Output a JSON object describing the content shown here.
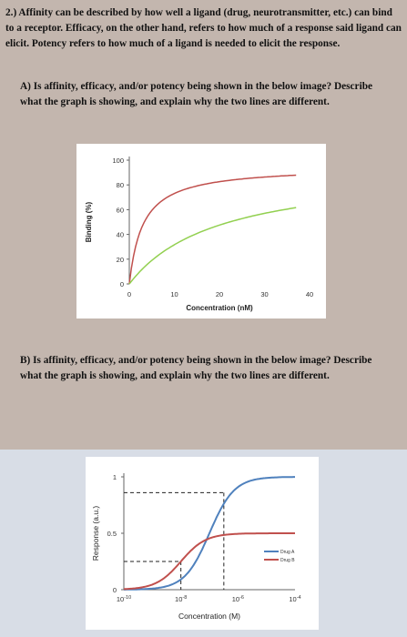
{
  "question": {
    "intro": "2.) Affinity can be described by how well a ligand (drug, neurotransmitter, etc.) can bind to a receptor. Efficacy, on the other hand, refers to how much of a response said ligand can elicit. Potency refers to how much of a ligand is needed to elicit the response.",
    "part_a": "A) Is affinity, efficacy, and/or potency being shown in the below image? Describe what the graph is showing, and explain why the two lines are different.",
    "part_b": "B) Is affinity, efficacy, and/or potency being shown in the below image? Describe what the graph is showing, and explain why the two lines are different."
  },
  "chart_data": [
    {
      "type": "line",
      "title": "",
      "xlabel": "Concentration (nM)",
      "ylabel": "Binding (%)",
      "xlim": [
        0,
        40
      ],
      "ylim": [
        0,
        100
      ],
      "x_ticks": [
        "0",
        "10",
        "20",
        "30",
        "40"
      ],
      "y_ticks": [
        "0",
        "20",
        "40",
        "60",
        "80",
        "100"
      ],
      "grid": false,
      "legend": "none",
      "series": [
        {
          "color": "#c0504d",
          "bmax": 95,
          "kd": 3,
          "x_end": 37
        },
        {
          "color": "#92d050",
          "bmax": 95,
          "kd": 20,
          "x_end": 37
        }
      ]
    },
    {
      "type": "line",
      "title": "",
      "xlabel": "Concentration (M)",
      "ylabel": "Response (a.u.)",
      "x_scale": "log",
      "xlim": [
        1e-10,
        0.0001
      ],
      "ylim": [
        0,
        1
      ],
      "x_ticks": [
        "10-10",
        "10-8",
        "10-6",
        "10-4"
      ],
      "y_ticks": [
        "0",
        "0.5",
        "1"
      ],
      "grid": false,
      "legend": "right",
      "series": [
        {
          "name": "Drug A",
          "color": "#4f81bd",
          "emax": 1.0,
          "ec50": 1e-07
        },
        {
          "name": "Drug B",
          "color": "#c0504d",
          "emax": 0.5,
          "ec50": 1e-08
        }
      ]
    }
  ]
}
